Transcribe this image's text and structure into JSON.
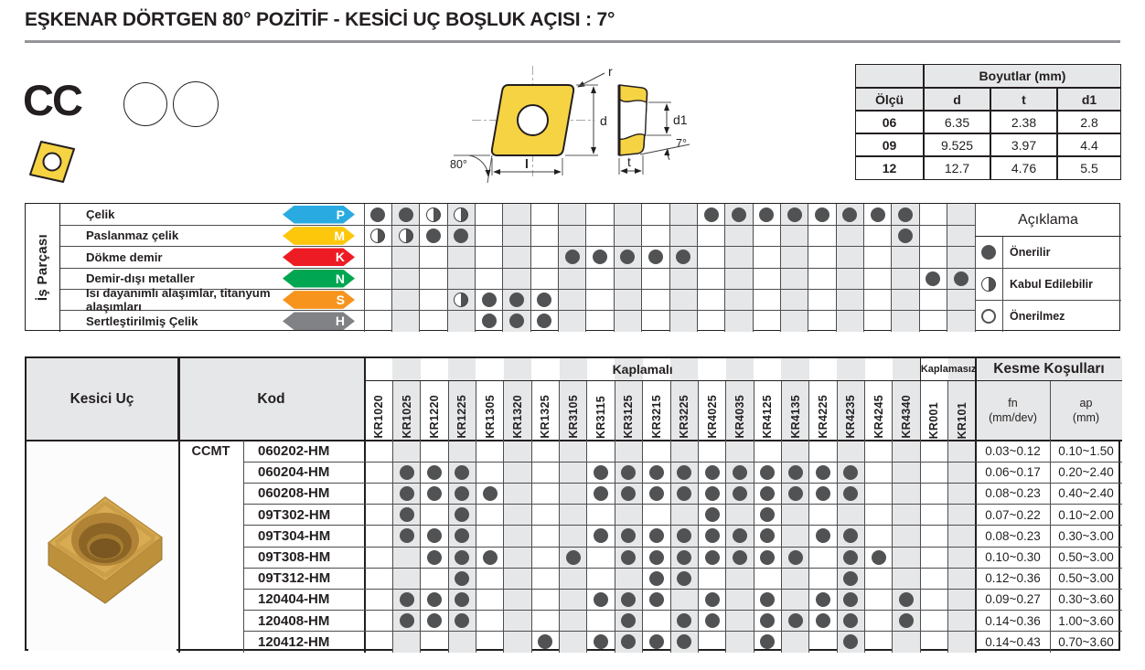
{
  "title": "EŞKENAR DÖRTGEN 80° POZİTİF - KESİCİ UÇ BOŞLUK AÇISI : 7°",
  "header": {
    "series_code": "CC"
  },
  "drawing": {
    "labels": {
      "r": "r",
      "d": "d",
      "l": "l",
      "angle80": "80°",
      "d1": "d1",
      "t": "t",
      "angle7": "7°"
    }
  },
  "dimensions_table": {
    "title": "Boyutlar (mm)",
    "col_headers": [
      "Ölçü",
      "d",
      "t",
      "d1"
    ],
    "rows": [
      [
        "06",
        "6.35",
        "2.38",
        "2.8"
      ],
      [
        "09",
        "9.525",
        "3.97",
        "4.4"
      ],
      [
        "12",
        "12.7",
        "4.76",
        "5.5"
      ]
    ]
  },
  "workpiece_table": {
    "side_label": "İş Parçası",
    "rows": [
      {
        "label": "Çelik",
        "letter": "P",
        "color": "#29abe2",
        "full": [
          1,
          2,
          13,
          14,
          15,
          16,
          17,
          18,
          19,
          20
        ],
        "half": [
          3,
          4
        ]
      },
      {
        "label": "Paslanmaz çelik",
        "letter": "M",
        "color": "#fdc70c",
        "full": [
          3,
          4,
          20
        ],
        "half": [
          1,
          2
        ]
      },
      {
        "label": "Dökme demir",
        "letter": "K",
        "color": "#ed1c24",
        "full": [
          8,
          9,
          10,
          11,
          12
        ],
        "half": []
      },
      {
        "label": "Demir-dışı metaller",
        "letter": "N",
        "color": "#00a651",
        "full": [
          21,
          22
        ],
        "half": []
      },
      {
        "label": "Isı dayanımlı alaşımlar, titanyum alaşımları",
        "letter": "S",
        "color": "#f7941e",
        "full": [
          5,
          6,
          7
        ],
        "half": [
          4
        ]
      },
      {
        "label": "Sertleştirilmiş Çelik",
        "letter": "H",
        "color": "#808285",
        "full": [
          5,
          6,
          7
        ],
        "half": []
      }
    ],
    "legend": {
      "title": "Açıklama",
      "items": [
        {
          "type": "full",
          "label": "Önerilir"
        },
        {
          "type": "half",
          "label": "Kabul Edilebilir"
        },
        {
          "type": "empty",
          "label": "Önerilmez"
        }
      ]
    }
  },
  "insert_table": {
    "headers": {
      "kesici_uc": "Kesici Uç",
      "kod": "Kod",
      "kaplamali": "Kaplamalı",
      "kaplamasiz": "Kaplamasız",
      "kesme": "Kesme Koşulları",
      "fn": "fn\n(mm/dev)",
      "ap": "ap\n(mm)"
    },
    "series": "CCMT",
    "grades_coated": [
      "KR1020",
      "KR1025",
      "KR1220",
      "KR1225",
      "KR1305",
      "KR1320",
      "KR1325",
      "KR3105",
      "KR3115",
      "KR3125",
      "KR3215",
      "KR3225",
      "KR4025",
      "KR4035",
      "KR4125",
      "KR4135",
      "KR4225",
      "KR4235",
      "KR4245",
      "KR4340"
    ],
    "grades_uncoated": [
      "KR001",
      "KR101"
    ],
    "rows": [
      {
        "code": "060202-HM",
        "dots": [],
        "fn": "0.03~0.12",
        "ap": "0.10~1.50"
      },
      {
        "code": "060204-HM",
        "dots": [
          2,
          3,
          4,
          9,
          10,
          11,
          12,
          13,
          14,
          15,
          16,
          17,
          18
        ],
        "fn": "0.06~0.17",
        "ap": "0.20~2.40"
      },
      {
        "code": "060208-HM",
        "dots": [
          2,
          3,
          4,
          5,
          9,
          10,
          11,
          12,
          13,
          14,
          15,
          16,
          17,
          18
        ],
        "fn": "0.08~0.23",
        "ap": "0.40~2.40"
      },
      {
        "code": "09T302-HM",
        "dots": [
          2,
          4,
          13,
          15
        ],
        "fn": "0.07~0.22",
        "ap": "0.10~2.00"
      },
      {
        "code": "09T304-HM",
        "dots": [
          2,
          3,
          4,
          9,
          10,
          11,
          12,
          13,
          14,
          15,
          17,
          18
        ],
        "fn": "0.08~0.23",
        "ap": "0.30~3.00"
      },
      {
        "code": "09T308-HM",
        "dots": [
          3,
          4,
          5,
          8,
          10,
          11,
          12,
          13,
          14,
          15,
          16,
          18,
          19
        ],
        "fn": "0.10~0.30",
        "ap": "0.50~3.00"
      },
      {
        "code": "09T312-HM",
        "dots": [
          4,
          11,
          12,
          18
        ],
        "fn": "0.12~0.36",
        "ap": "0.50~3.00"
      },
      {
        "code": "120404-HM",
        "dots": [
          2,
          3,
          4,
          9,
          10,
          11,
          13,
          15,
          17,
          18,
          20
        ],
        "fn": "0.09~0.27",
        "ap": "0.30~3.60"
      },
      {
        "code": "120408-HM",
        "dots": [
          2,
          3,
          4,
          10,
          12,
          13,
          15,
          16,
          17,
          18,
          20
        ],
        "fn": "0.14~0.36",
        "ap": "1.00~3.60"
      },
      {
        "code": "120412-HM",
        "dots": [
          7,
          9,
          10,
          11,
          12,
          15,
          18
        ],
        "fn": "0.14~0.43",
        "ap": "0.70~3.60"
      }
    ]
  },
  "colors": {
    "dot": "#515254",
    "shading": "#e6e7e8",
    "insert_yellow": "#f6d343",
    "border_dark": "#231f20"
  }
}
